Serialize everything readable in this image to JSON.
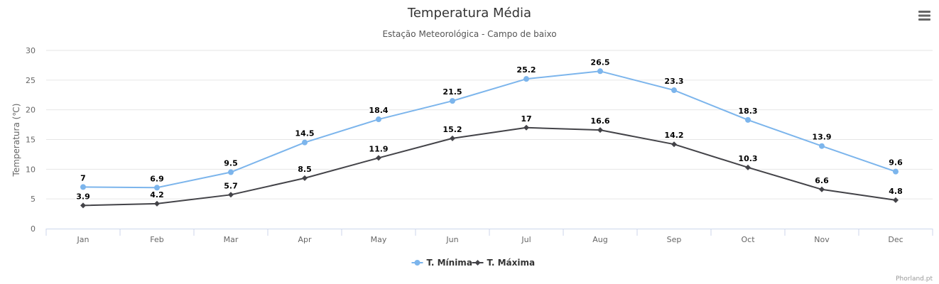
{
  "chart_data": {
    "type": "line",
    "title": "Temperatura Média",
    "subtitle": "Estação Meteorológica - Campo de baixo",
    "ylabel": "Temperatura (℃)",
    "xlabel": "",
    "ylim": [
      0,
      30
    ],
    "yticks": [
      0,
      5,
      10,
      15,
      20,
      25,
      30
    ],
    "grid": true,
    "legend_position": "bottom-center",
    "categories": [
      "Jan",
      "Feb",
      "Mar",
      "Apr",
      "May",
      "Jun",
      "Jul",
      "Aug",
      "Sep",
      "Oct",
      "Nov",
      "Dec"
    ],
    "series": [
      {
        "name": "T. Mínima",
        "color": "#7cb5ec",
        "marker": "circle",
        "values": [
          7,
          6.9,
          9.5,
          14.5,
          18.4,
          21.5,
          25.2,
          26.5,
          23.3,
          18.3,
          13.9,
          9.6
        ]
      },
      {
        "name": "T. Máxima",
        "color": "#434348",
        "marker": "diamond",
        "values": [
          3.9,
          4.2,
          5.7,
          8.5,
          11.9,
          15.2,
          17,
          16.6,
          14.2,
          10.3,
          6.6,
          4.8
        ]
      }
    ]
  },
  "credits": "Phorland.pt",
  "menu_icon": "hamburger-menu-icon"
}
